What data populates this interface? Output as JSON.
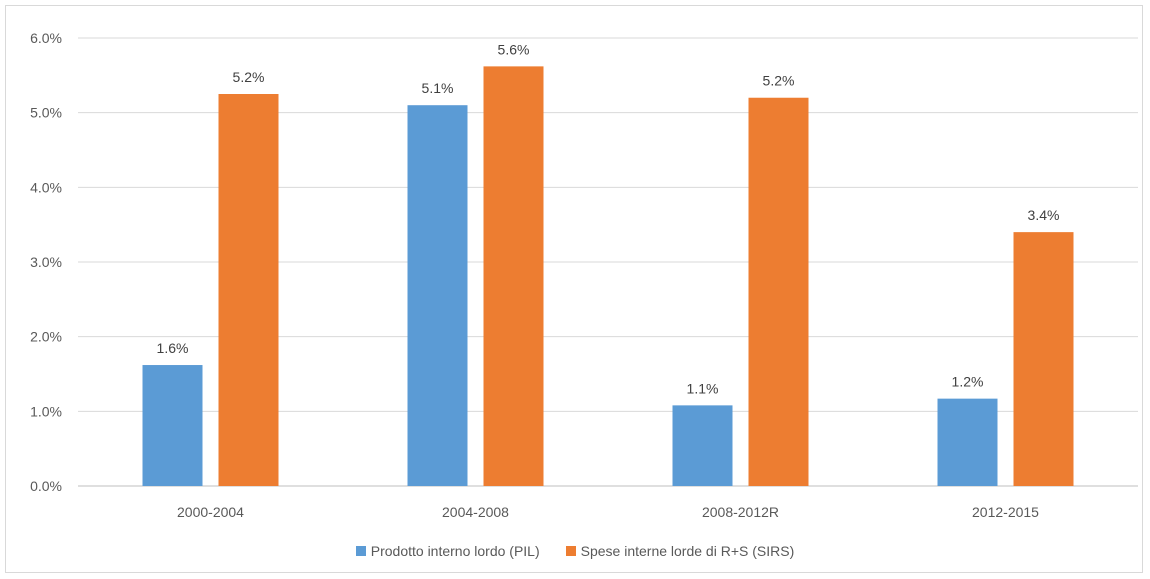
{
  "chart_data": {
    "type": "bar",
    "categories": [
      "2000-2004",
      "2004-2008",
      "2008-2012R",
      "2012-2015"
    ],
    "series": [
      {
        "name": "Prodotto interno lordo (PIL)",
        "color": "#5b9bd5",
        "values": [
          1.62,
          5.1,
          1.08,
          1.17
        ],
        "labels": [
          "1.6%",
          "5.1%",
          "1.1%",
          "1.2%"
        ]
      },
      {
        "name": "Spese interne lorde di R+S (SIRS)",
        "color": "#ed7d31",
        "values": [
          5.25,
          5.62,
          5.2,
          3.4
        ],
        "labels": [
          "5.2%",
          "5.6%",
          "5.2%",
          "3.4%"
        ]
      }
    ],
    "y_ticks": [
      "0.0%",
      "1.0%",
      "2.0%",
      "3.0%",
      "4.0%",
      "5.0%",
      "6.0%"
    ],
    "ylim": [
      0,
      6
    ],
    "grid": true,
    "legend_position": "bottom"
  }
}
